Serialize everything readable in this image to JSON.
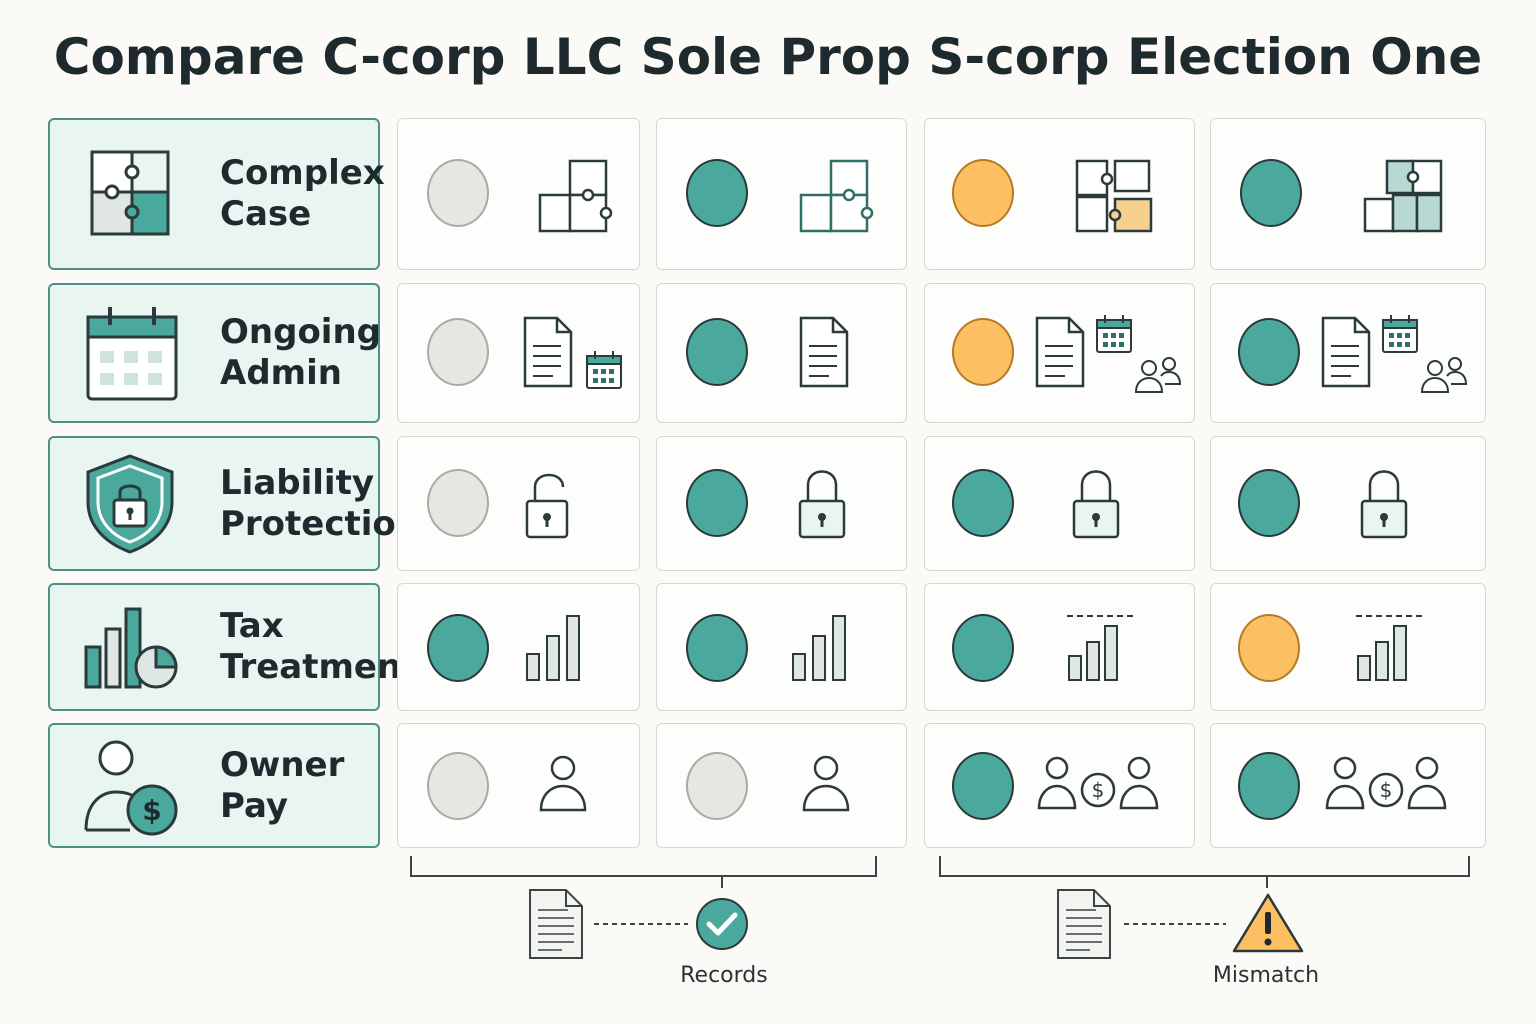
{
  "title": "Compare C-corp LLC Sole Prop S-corp Election One",
  "legend_colors": {
    "full": "#4aa89c",
    "partial": "#fcc062",
    "none": "#e6e6e3"
  },
  "rows": [
    {
      "label_line1": "Complex",
      "label_line2": "Case",
      "icon": "puzzle-icon",
      "levels": [
        "none",
        "full",
        "partial",
        "full"
      ]
    },
    {
      "label_line1": "Ongoing",
      "label_line2": "Admin",
      "icon": "calendar-icon",
      "levels": [
        "none",
        "full",
        "partial",
        "full"
      ]
    },
    {
      "label_line1": "Liability",
      "label_line2": "Protection",
      "icon": "shield-lock-icon",
      "levels": [
        "none",
        "full",
        "full",
        "full"
      ]
    },
    {
      "label_line1": "Tax",
      "label_line2": "Treatment",
      "icon": "chart-icon",
      "levels": [
        "full",
        "full",
        "full",
        "partial"
      ]
    },
    {
      "label_line1": "Owner",
      "label_line2": "Pay",
      "icon": "owner-pay-icon",
      "levels": [
        "none",
        "none",
        "full",
        "full"
      ]
    }
  ],
  "footer": {
    "left": {
      "label": "Records",
      "icon": "check-icon"
    },
    "right": {
      "label": "Mismatch",
      "icon": "warning-icon"
    }
  }
}
